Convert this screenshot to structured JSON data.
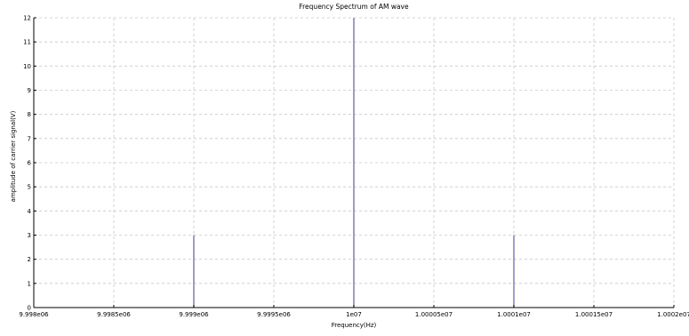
{
  "chart_data": {
    "type": "stem",
    "title": "Frequency Spectrum of AM wave",
    "xlabel": "Frequency(Hz)",
    "ylabel": "amplitude of carrier signal(V)",
    "xlim": [
      9998000,
      10002000
    ],
    "ylim": [
      0,
      12
    ],
    "xticks": [
      9998000,
      9998500,
      9999000,
      9999500,
      10000000,
      10000500,
      10001000,
      10001500,
      10002000
    ],
    "xtick_labels": [
      "9.998e06",
      "9.9985e06",
      "9.999e06",
      "9.9995e06",
      "1e07",
      "1.00005e07",
      "1.0001e07",
      "1.00015e07",
      "1.0002e07"
    ],
    "yticks": [
      0,
      1,
      2,
      3,
      4,
      5,
      6,
      7,
      8,
      9,
      10,
      11,
      12
    ],
    "ytick_labels": [
      "0",
      "1",
      "2",
      "3",
      "4",
      "5",
      "6",
      "7",
      "8",
      "9",
      "10",
      "11",
      "12"
    ],
    "grid": true,
    "series": [
      {
        "x": [
          9999000,
          10000000,
          10001000
        ],
        "y": [
          3,
          12,
          3
        ]
      }
    ],
    "colors": {
      "stem": "#6a6aaa",
      "grid": "#c8c8c8",
      "axis": "#000000"
    }
  }
}
